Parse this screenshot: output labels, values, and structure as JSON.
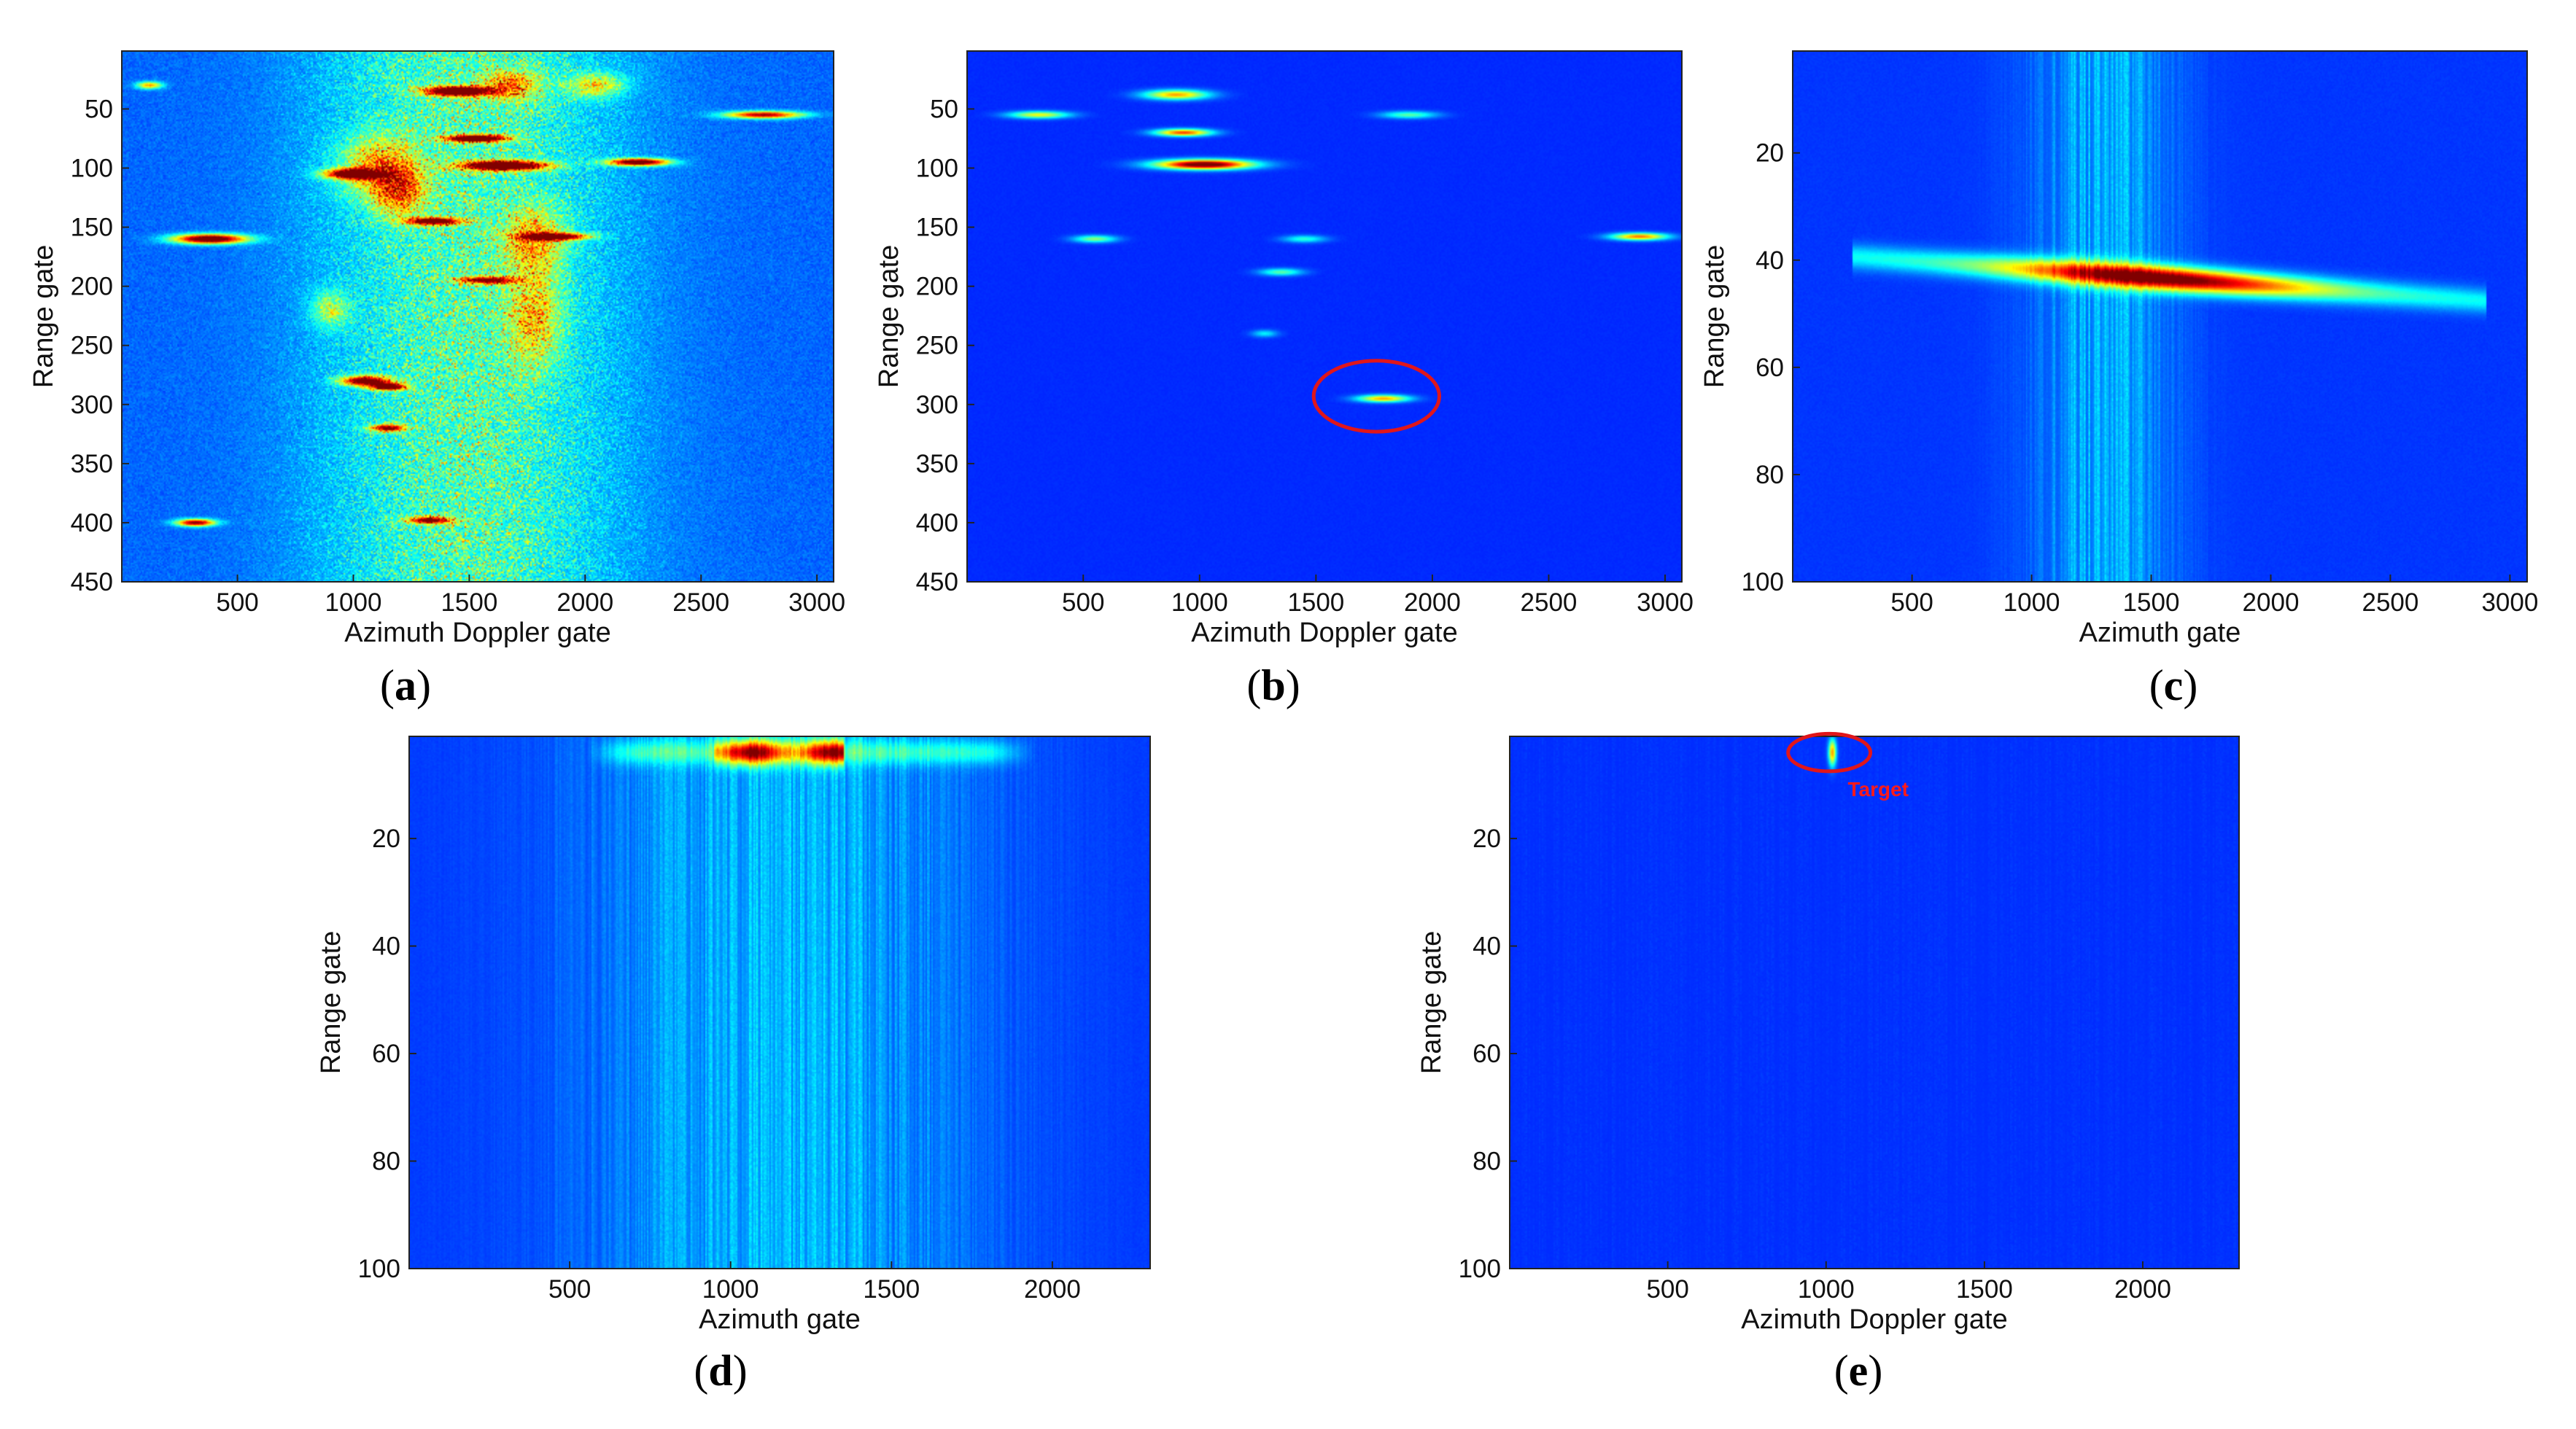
{
  "chart_data": [
    {
      "type": "heatmap",
      "panel_label": "a",
      "xlabel": "Azimuth Doppler gate",
      "ylabel": "Range gate",
      "xlim": [
        1,
        3072
      ],
      "ylim": [
        1,
        450
      ],
      "xticks": [
        500,
        1000,
        1500,
        2000,
        2500,
        3000
      ],
      "yticks": [
        50,
        100,
        150,
        200,
        250,
        300,
        350,
        400,
        450
      ],
      "colormap": "jet",
      "background": "noisy-clutter",
      "clutter_band": [
        800,
        2200
      ],
      "streaks": [
        [
          1450,
          35,
          300,
          4,
          1
        ],
        [
          1530,
          75,
          280,
          3,
          0.95
        ],
        [
          1650,
          98,
          380,
          4,
          1
        ],
        [
          2230,
          95,
          280,
          3,
          0.9
        ],
        [
          2770,
          55,
          360,
          3,
          0.75
        ],
        [
          380,
          160,
          340,
          4,
          0.95
        ],
        [
          1350,
          145,
          240,
          3,
          0.85
        ],
        [
          1870,
          158,
          300,
          3,
          0.8
        ],
        [
          1050,
          280,
          220,
          4,
          0.8
        ],
        [
          1150,
          285,
          160,
          3,
          0.85
        ],
        [
          320,
          400,
          180,
          3,
          0.8
        ],
        [
          1150,
          320,
          160,
          3,
          0.7
        ],
        [
          1580,
          195,
          260,
          3,
          0.7
        ],
        [
          1330,
          398,
          200,
          3,
          0.7
        ],
        [
          120,
          30,
          120,
          3,
          0.5
        ],
        [
          1000,
          105,
          260,
          4,
          0.85
        ]
      ],
      "blobs": [
        [
          1110,
          100,
          160,
          25,
          0.9
        ],
        [
          1780,
          160,
          120,
          25,
          0.75
        ],
        [
          1780,
          225,
          110,
          40,
          0.7
        ],
        [
          900,
          220,
          80,
          15,
          0.6
        ],
        [
          1680,
          30,
          120,
          12,
          0.85
        ],
        [
          2050,
          30,
          120,
          10,
          0.75
        ],
        [
          1200,
          120,
          100,
          20,
          0.85
        ]
      ]
    },
    {
      "type": "heatmap",
      "panel_label": "b",
      "xlabel": "Azimuth Doppler gate",
      "ylabel": "Range gate",
      "xlim": [
        1,
        3072
      ],
      "ylim": [
        1,
        450
      ],
      "xticks": [
        500,
        1000,
        1500,
        2000,
        2500,
        3000
      ],
      "yticks": [
        50,
        100,
        150,
        200,
        250,
        300,
        350,
        400,
        450
      ],
      "colormap": "jet",
      "background": "clean",
      "streaks": [
        [
          900,
          38,
          300,
          4,
          0.55
        ],
        [
          1020,
          97,
          440,
          4,
          0.95
        ],
        [
          930,
          70,
          260,
          3,
          0.65
        ],
        [
          2890,
          158,
          260,
          3,
          0.6
        ],
        [
          310,
          55,
          280,
          3,
          0.45
        ],
        [
          1790,
          295,
          240,
          3,
          0.55
        ],
        [
          550,
          160,
          200,
          3,
          0.35
        ],
        [
          1350,
          188,
          200,
          3,
          0.3
        ],
        [
          1900,
          55,
          260,
          3,
          0.3
        ],
        [
          1280,
          240,
          120,
          3,
          0.2
        ],
        [
          1450,
          160,
          200,
          3,
          0.25
        ]
      ],
      "ellipse": {
        "cx": 1760,
        "cy": 293,
        "rx": 270,
        "ry": 30,
        "color": "#e0161b"
      }
    },
    {
      "type": "heatmap",
      "panel_label": "c",
      "xlabel": "Azimuth gate",
      "ylabel": "Range gate",
      "xlim": [
        1,
        3072
      ],
      "ylim": [
        1,
        100
      ],
      "xticks": [
        500,
        1000,
        1500,
        2000,
        2500,
        3000
      ],
      "yticks": [
        20,
        40,
        60,
        80,
        100
      ],
      "colormap": "jet",
      "background": "vertical-texture",
      "texture_center": 1300,
      "texture_width": 300,
      "main_target": {
        "x0": 450,
        "y0": 40,
        "x1": 2700,
        "y1": 47,
        "peak_x": 1550
      }
    },
    {
      "type": "heatmap",
      "panel_label": "d",
      "xlabel": "Azimuth gate",
      "ylabel": "Range gate",
      "xlim": [
        1,
        2304
      ],
      "ylim": [
        1,
        100
      ],
      "xticks": [
        500,
        1000,
        1500,
        2000
      ],
      "yticks": [
        20,
        40,
        60,
        80,
        100
      ],
      "colormap": "jet",
      "background": "vertical-texture",
      "texture_center": 1150,
      "texture_width": 650,
      "top_band": {
        "y": 4,
        "x0": 550,
        "x1": 1950,
        "peak_x0": 950,
        "peak_x1": 1350
      }
    },
    {
      "type": "heatmap",
      "panel_label": "e",
      "xlabel": "Azimuth Doppler gate",
      "ylabel": "Range gate",
      "xlim": [
        1,
        2304
      ],
      "ylim": [
        1,
        100
      ],
      "xticks": [
        500,
        1000,
        1500,
        2000
      ],
      "yticks": [
        20,
        40,
        60,
        80,
        100
      ],
      "colormap": "jet",
      "background": "faint-vertical",
      "point_target": {
        "x": 1020,
        "y": 4
      },
      "ellipse": {
        "cx": 1010,
        "cy": 4,
        "rx": 130,
        "ry": 3.5,
        "color": "#e0161b"
      },
      "annotation": "Target"
    }
  ]
}
